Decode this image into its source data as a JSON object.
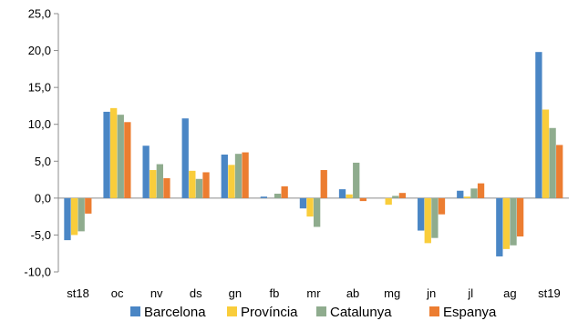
{
  "chart_data": {
    "type": "bar",
    "categories": [
      "st18",
      "oc",
      "nv",
      "ds",
      "gn",
      "fb",
      "mr",
      "ab",
      "mg",
      "jn",
      "jl",
      "ag",
      "st19"
    ],
    "series": [
      {
        "name": "Barcelona",
        "color": "#4a86c5",
        "values": [
          -5.7,
          11.7,
          7.1,
          10.8,
          5.9,
          0.2,
          -1.4,
          1.2,
          0.0,
          -4.4,
          1.0,
          -7.9,
          19.8
        ]
      },
      {
        "name": "Província",
        "color": "#f9cd3b",
        "values": [
          -5.0,
          12.2,
          3.8,
          3.7,
          4.5,
          0.0,
          -2.5,
          0.5,
          -0.9,
          -6.1,
          0.2,
          -6.9,
          12.0
        ]
      },
      {
        "name": "Catalunya",
        "color": "#8fac8e",
        "values": [
          -4.5,
          11.3,
          4.6,
          2.6,
          6.0,
          0.6,
          -3.9,
          4.8,
          0.3,
          -5.4,
          1.3,
          -6.4,
          9.5
        ]
      },
      {
        "name": "Espanya",
        "color": "#ec7d31",
        "values": [
          -2.1,
          10.3,
          2.7,
          3.5,
          6.2,
          1.6,
          3.8,
          -0.4,
          0.7,
          -2.2,
          2.0,
          -5.2,
          7.2
        ]
      }
    ],
    "ylim": [
      -10,
      25
    ],
    "yticks": [
      "-10,0",
      "-5,0",
      "0,0",
      "5,0",
      "10,0",
      "15,0",
      "20,0",
      "25,0"
    ],
    "ytick_values": [
      -10,
      -5,
      0,
      5,
      10,
      15,
      20,
      25
    ],
    "grid": false,
    "legend_position": "bottom",
    "title": "",
    "xlabel": "",
    "ylabel": ""
  }
}
